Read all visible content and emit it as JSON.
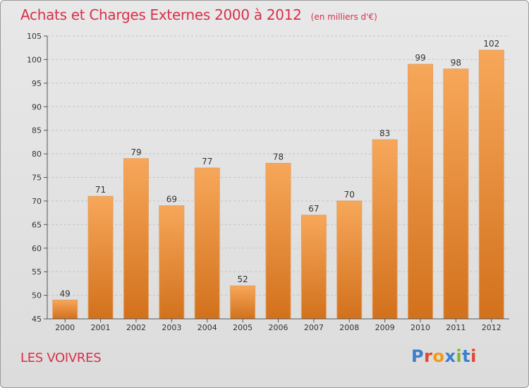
{
  "header": {
    "title": "Achats et Charges Externes 2000 à 2012",
    "unit": "(en milliers d'€)"
  },
  "footer": {
    "commune": "LES VOIVRES",
    "logo": "Proxiti",
    "logo_colors": [
      "#3a7fd0",
      "#e8442c",
      "#f09a1a",
      "#3a7fd0",
      "#7ab82e",
      "#3a7fd0",
      "#e8442c"
    ]
  },
  "colors": {
    "bar_light": "#f7a75a",
    "bar_dark": "#d2711c",
    "text": "#d8304a"
  },
  "chart_data": {
    "type": "bar",
    "title": "Achats et Charges Externes 2000 à 2012",
    "xlabel": "",
    "ylabel": "",
    "categories": [
      "2000",
      "2001",
      "2002",
      "2003",
      "2004",
      "2005",
      "2006",
      "2007",
      "2008",
      "2009",
      "2010",
      "2011",
      "2012"
    ],
    "values": [
      49,
      71,
      79,
      69,
      77,
      52,
      78,
      67,
      70,
      83,
      99,
      98,
      102
    ],
    "ylim": [
      45,
      105
    ],
    "yticks": [
      45,
      50,
      55,
      60,
      65,
      70,
      75,
      80,
      85,
      90,
      95,
      100,
      105
    ],
    "grid": true
  }
}
